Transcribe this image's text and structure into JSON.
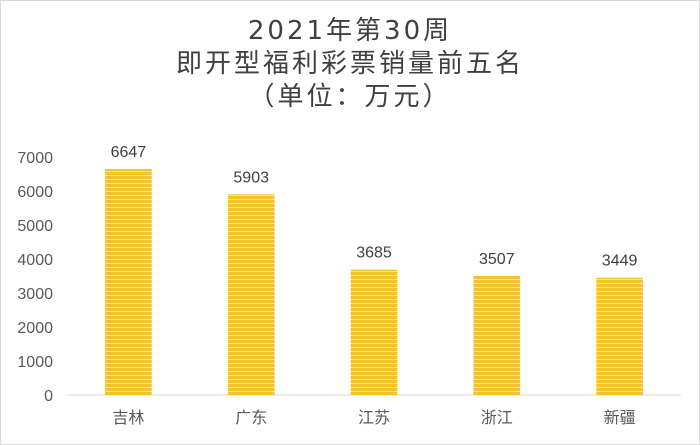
{
  "chart_data": {
    "type": "bar",
    "title_lines": [
      "2021年第30周",
      "即开型福利彩票销量前五名",
      "（单位：万元）"
    ],
    "categories": [
      "吉林",
      "广东",
      "江苏",
      "浙江",
      "新疆"
    ],
    "values": [
      6647,
      5903,
      3685,
      3507,
      3449
    ],
    "data_labels": [
      "6647",
      "5903",
      "3685",
      "3507",
      "3449"
    ],
    "ylim": [
      0,
      7000
    ],
    "yticks": [
      "0",
      "1000",
      "2000",
      "3000",
      "4000",
      "5000",
      "6000",
      "7000"
    ],
    "xlabel": "",
    "ylabel": "",
    "grid": false,
    "legend": "none",
    "bar_color": "#f6c22b",
    "bar_stripe_color": "#fbe49a"
  }
}
